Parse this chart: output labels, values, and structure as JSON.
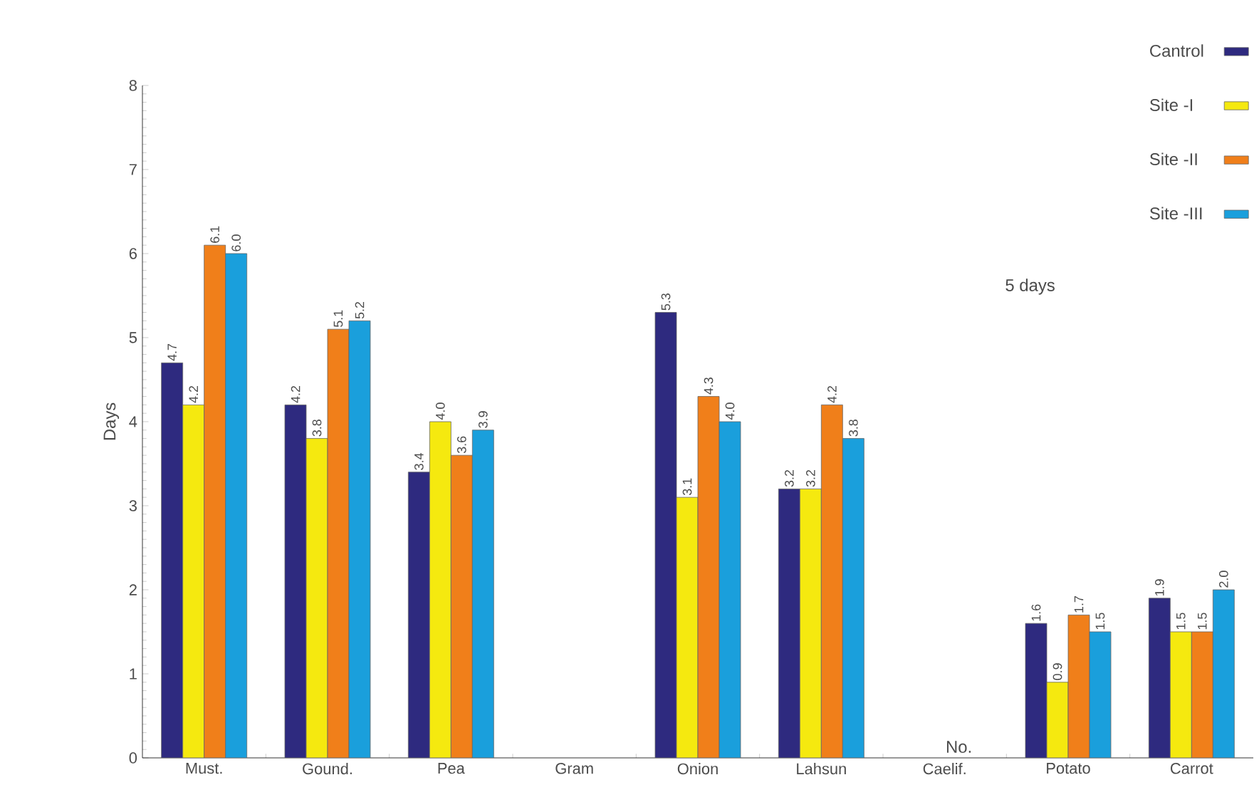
{
  "chart_data": {
    "type": "bar",
    "ylabel": "Days",
    "categories": [
      "Must.",
      "Gound.",
      "Pea",
      "Gram",
      "Onion",
      "Lahsun",
      "Caelif.",
      "Potato",
      "Carrot"
    ],
    "series": [
      {
        "name": "Cantrol",
        "color": "#2e2a7f",
        "values": [
          4.7,
          4.2,
          3.4,
          null,
          5.3,
          3.2,
          null,
          1.6,
          1.9
        ],
        "value_labels": [
          "4.7",
          "4.2",
          "3.4",
          null,
          "5.3",
          "3.2",
          null,
          "1.6",
          "1.9"
        ]
      },
      {
        "name": "Site -I",
        "color": "#f5e90f",
        "values": [
          4.2,
          3.8,
          4.0,
          null,
          3.1,
          3.2,
          null,
          0.9,
          1.5
        ],
        "value_labels": [
          "4.2",
          "3.8",
          "4.0",
          null,
          "3.1",
          "3.2",
          null,
          "0.9",
          "1.5"
        ]
      },
      {
        "name": "Site -II",
        "color": "#f07f1a",
        "values": [
          6.1,
          5.1,
          3.6,
          null,
          4.3,
          4.2,
          null,
          1.7,
          1.5
        ],
        "value_labels": [
          "6.1",
          "5.1",
          "3.6",
          null,
          "4.3",
          "4.2",
          null,
          "1.7",
          "1.5"
        ]
      },
      {
        "name": "Site -III",
        "color": "#1a9fdc",
        "values": [
          6.0,
          5.2,
          3.9,
          null,
          4.0,
          3.8,
          null,
          1.5,
          2.0
        ],
        "value_labels": [
          "6.0",
          "5.2",
          "3.9",
          null,
          "4.0",
          "3.8",
          null,
          "1.5",
          "2.0"
        ]
      }
    ],
    "ylim": [
      0,
      8
    ],
    "yticks": [
      0,
      1,
      2,
      3,
      4,
      5,
      6,
      7,
      8
    ],
    "legend": "top right",
    "annotations": [
      "5 days",
      "No."
    ]
  }
}
